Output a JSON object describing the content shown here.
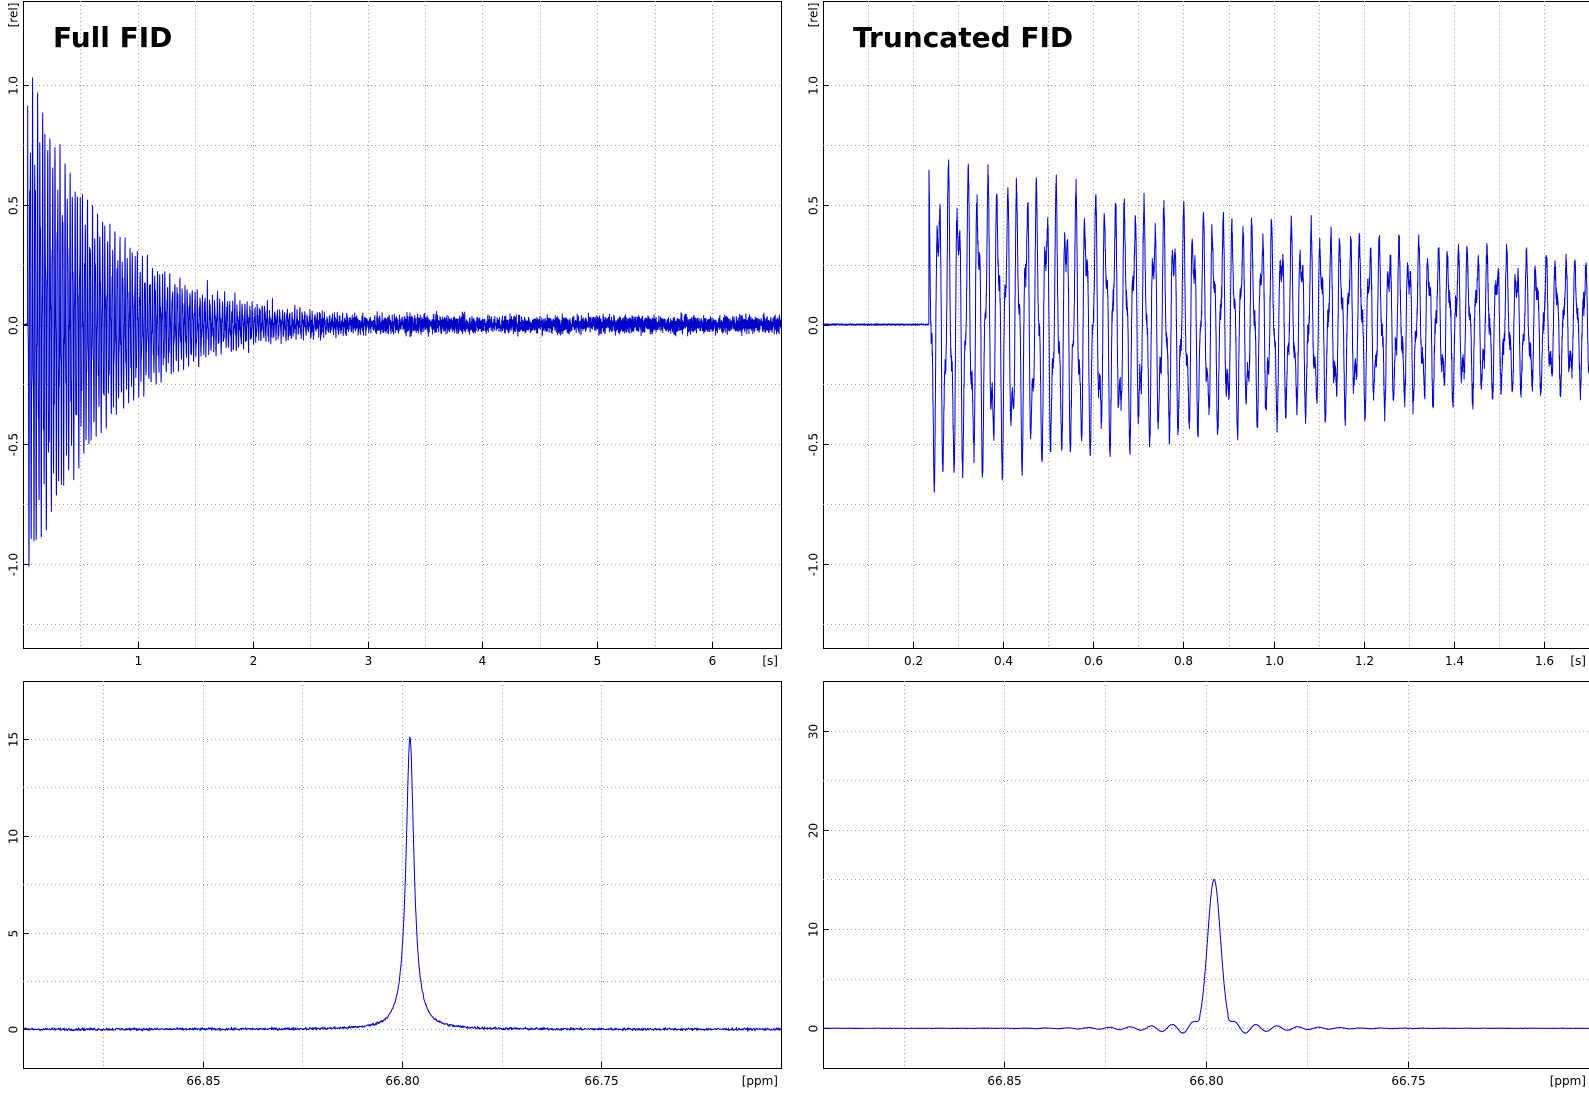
{
  "colors": {
    "trace": "#0000cc",
    "frame": "#000000",
    "grid": "#9a9a9a"
  },
  "chart_data": [
    {
      "type": "line",
      "title": "Full FID",
      "xlabel": "[s]",
      "ylabel": "[rel]",
      "xlim": [
        0.0,
        6.6
      ],
      "ylim": [
        -1.35,
        1.35
      ],
      "xticks": [
        {
          "v": 1,
          "t": "1"
        },
        {
          "v": 2,
          "t": "2"
        },
        {
          "v": 3,
          "t": "3"
        },
        {
          "v": 4,
          "t": "4"
        },
        {
          "v": 5,
          "t": "5"
        },
        {
          "v": 6,
          "t": "6"
        }
      ],
      "yticks": [
        {
          "v": 1.0,
          "t": "1.0"
        },
        {
          "v": 0.5,
          "t": "0.5"
        },
        {
          "v": 0.0,
          "t": "0.0"
        },
        {
          "v": -0.5,
          "t": "-0.5"
        },
        {
          "v": -1.0,
          "t": "-1.0"
        }
      ],
      "grid": true,
      "signal": {
        "kind": "fid",
        "start": 0.0,
        "onset": 0.04,
        "peak_amplitude": 1.08,
        "decay_time": 0.75,
        "noise": 0.035,
        "end": 6.6
      }
    },
    {
      "type": "line",
      "title": "Truncated FID",
      "xlabel": "[s]",
      "ylabel": "[rel]",
      "xlim": [
        0.0,
        1.7
      ],
      "ylim": [
        -1.35,
        1.35
      ],
      "xticks": [
        {
          "v": 0.2,
          "t": "0.2"
        },
        {
          "v": 0.4,
          "t": "0.4"
        },
        {
          "v": 0.6,
          "t": "0.6"
        },
        {
          "v": 0.8,
          "t": "0.8"
        },
        {
          "v": 1.0,
          "t": "1.0"
        },
        {
          "v": 1.2,
          "t": "1.2"
        },
        {
          "v": 1.4,
          "t": "1.4"
        },
        {
          "v": 1.6,
          "t": "1.6"
        }
      ],
      "yticks": [
        {
          "v": 1.0,
          "t": "1.0"
        },
        {
          "v": 0.5,
          "t": "0.5"
        },
        {
          "v": 0.0,
          "t": "0.0"
        },
        {
          "v": -0.5,
          "t": "-0.5"
        },
        {
          "v": -1.0,
          "t": "-1.0"
        }
      ],
      "grid": true,
      "signal": {
        "kind": "fid",
        "start": 0.0,
        "onset": 0.235,
        "peak_amplitude": 0.7,
        "decay_time": 1.6,
        "noise": 0.04,
        "end": 1.7
      }
    },
    {
      "type": "line",
      "xlabel": "[ppm]",
      "xlim": [
        66.895,
        66.705
      ],
      "ylim": [
        -2.0,
        18.0
      ],
      "xticks": [
        {
          "v": 66.85,
          "t": "66.85"
        },
        {
          "v": 66.8,
          "t": "66.80"
        },
        {
          "v": 66.75,
          "t": "66.75"
        }
      ],
      "yticks": [
        {
          "v": 15,
          "t": "15"
        },
        {
          "v": 10,
          "t": "10"
        },
        {
          "v": 5,
          "t": "5"
        },
        {
          "v": 0,
          "t": "0"
        }
      ],
      "grid": true,
      "signal": {
        "kind": "lorentzian",
        "center": 66.798,
        "height": 15.1,
        "half_width": 0.0012,
        "noise": 0.07
      }
    },
    {
      "type": "line",
      "xlabel": "[ppm]",
      "xlim": [
        66.895,
        66.705
      ],
      "ylim": [
        -4.0,
        35.0
      ],
      "xticks": [
        {
          "v": 66.85,
          "t": "66.85"
        },
        {
          "v": 66.8,
          "t": "66.80"
        },
        {
          "v": 66.75,
          "t": "66.75"
        }
      ],
      "yticks": [
        {
          "v": 30,
          "t": "30"
        },
        {
          "v": 20,
          "t": "20"
        },
        {
          "v": 10,
          "t": "10"
        },
        {
          "v": 0,
          "t": "0"
        }
      ],
      "grid": true,
      "signal": {
        "kind": "sinc",
        "center": 66.798,
        "height": 15.0,
        "half_width": 0.0016,
        "ripple_period": 0.0052,
        "noise": 0.03
      }
    }
  ]
}
